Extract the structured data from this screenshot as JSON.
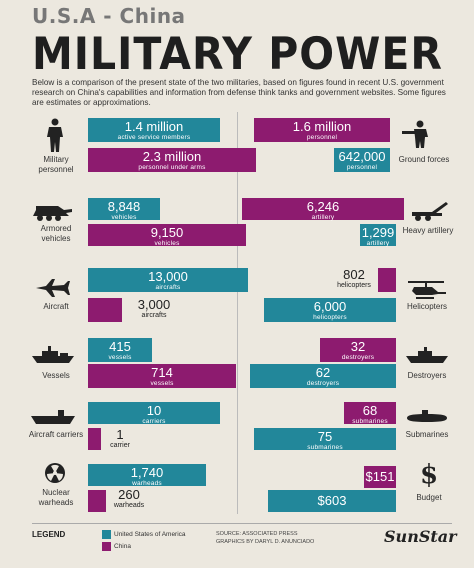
{
  "header": {
    "kicker": "U.S.A - China",
    "title": "MILITARY POWER",
    "intro": "Below is a comparison of the present state of the two militaries, based on figures found in recent U.S. government research on China's capabilities and information from defense think tanks and government websites. Some figures are estimates or approximations."
  },
  "rows": {
    "personnel": {
      "left_cat": "Military personnel",
      "right_cat": "Ground forces",
      "us_left": {
        "value": "1.4 million",
        "label": "active service members"
      },
      "cn_left": {
        "value": "2.3 million",
        "label": "personnel under arms"
      },
      "cn_right": {
        "value": "1.6 million",
        "label": "personnel"
      },
      "us_right": {
        "value": "642,000",
        "label": "personnel"
      }
    },
    "armored": {
      "left_cat": "Armored vehicles",
      "right_cat": "Heavy artillery",
      "us_left": {
        "value": "8,848",
        "label": "vehicles"
      },
      "cn_left": {
        "value": "9,150",
        "label": "vehicles"
      },
      "cn_right": {
        "value": "6,246",
        "label": "artillery"
      },
      "us_right": {
        "value": "1,299",
        "label": "artillery"
      }
    },
    "aircraft": {
      "left_cat": "Aircraft",
      "right_cat": "Helicopters",
      "us_left": {
        "value": "13,000",
        "label": "aircrafts"
      },
      "cn_left": {
        "value": "3,000",
        "label": "aircrafts"
      },
      "cn_right": {
        "value": "802",
        "label": "helicopters"
      },
      "us_right": {
        "value": "6,000",
        "label": "helicopters"
      }
    },
    "vessels": {
      "left_cat": "Vessels",
      "right_cat": "Destroyers",
      "us_left": {
        "value": "415",
        "label": "vessels"
      },
      "cn_left": {
        "value": "714",
        "label": "vessels"
      },
      "cn_right": {
        "value": "32",
        "label": "destroyers"
      },
      "us_right": {
        "value": "62",
        "label": "destroyers"
      }
    },
    "carriers": {
      "left_cat": "Aircraft carriers",
      "right_cat": "Submarines",
      "us_left": {
        "value": "10",
        "label": "carriers"
      },
      "cn_left": {
        "value": "1",
        "label": "carrier"
      },
      "cn_right": {
        "value": "68",
        "label": "submarines"
      },
      "us_right": {
        "value": "75",
        "label": "submarines"
      }
    },
    "nuclear": {
      "left_cat": "Nuclear warheads",
      "right_cat": "Budget",
      "us_left": {
        "value": "1,740",
        "label": "warheads"
      },
      "cn_left": {
        "value": "260",
        "label": "warheads"
      },
      "cn_right": {
        "value": "$151",
        "label": ""
      },
      "us_right": {
        "value": "$603",
        "label": ""
      }
    }
  },
  "legend": {
    "title": "LEGEND",
    "us": "United States of America",
    "cn": "China",
    "us_color": "#22879a",
    "cn_color": "#8d1b6f"
  },
  "source": {
    "line1": "SOURCE: ASSOCIATED PRESS",
    "line2": "GRAPHICS BY DARYL D. ANUNCIADO"
  },
  "brand": "SunStar"
}
